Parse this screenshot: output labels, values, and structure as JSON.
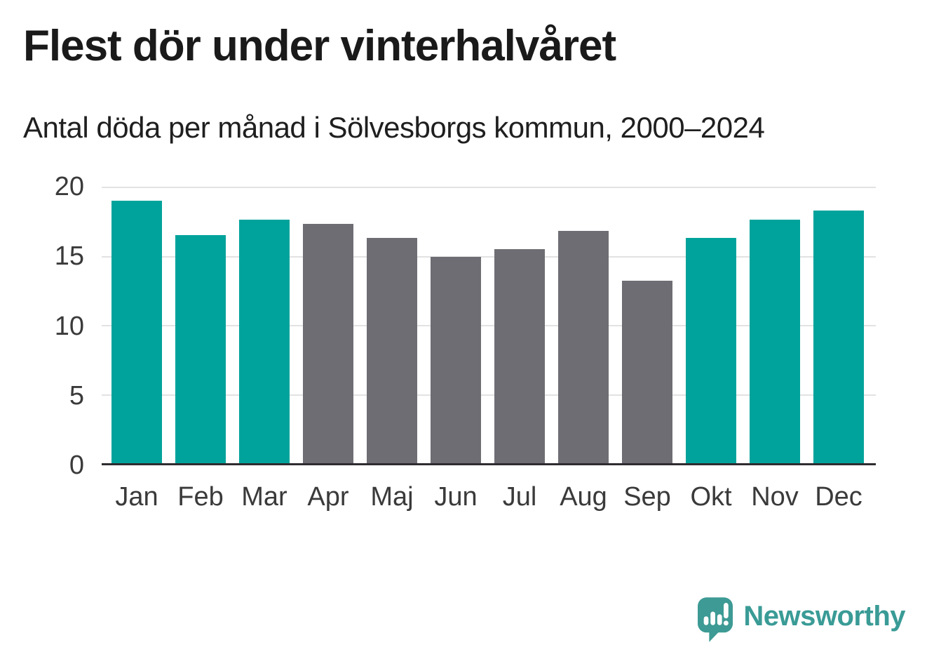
{
  "chart_data": {
    "type": "bar",
    "title": "Flest dör under vinterhalvåret",
    "subtitle": "Antal döda per månad i Sölvesborgs kommun, 2000–2024",
    "categories": [
      "Jan",
      "Feb",
      "Mar",
      "Apr",
      "Maj",
      "Jun",
      "Jul",
      "Aug",
      "Sep",
      "Okt",
      "Nov",
      "Dec"
    ],
    "values": [
      19.0,
      16.5,
      17.6,
      17.3,
      16.3,
      14.9,
      15.5,
      16.8,
      13.2,
      16.3,
      17.6,
      18.3
    ],
    "bar_seasons": [
      "winter",
      "winter",
      "winter",
      "summer",
      "summer",
      "summer",
      "summer",
      "summer",
      "summer",
      "winter",
      "winter",
      "winter"
    ],
    "palette": {
      "winter": "#00a39b",
      "summer": "#6e6d73"
    },
    "xlabel": "",
    "ylabel": "",
    "ylim": [
      0,
      20
    ],
    "yticks": [
      0,
      5,
      10,
      15,
      20
    ],
    "grid": true,
    "legend_position": "none",
    "axis_line_color": "#2e2c31",
    "gridline_color": "#e2e2e2"
  },
  "footer": {
    "logo_text": "Newsworthy",
    "logo_color": "#3a9b96",
    "logo_icon_color": "#3d9a94"
  }
}
